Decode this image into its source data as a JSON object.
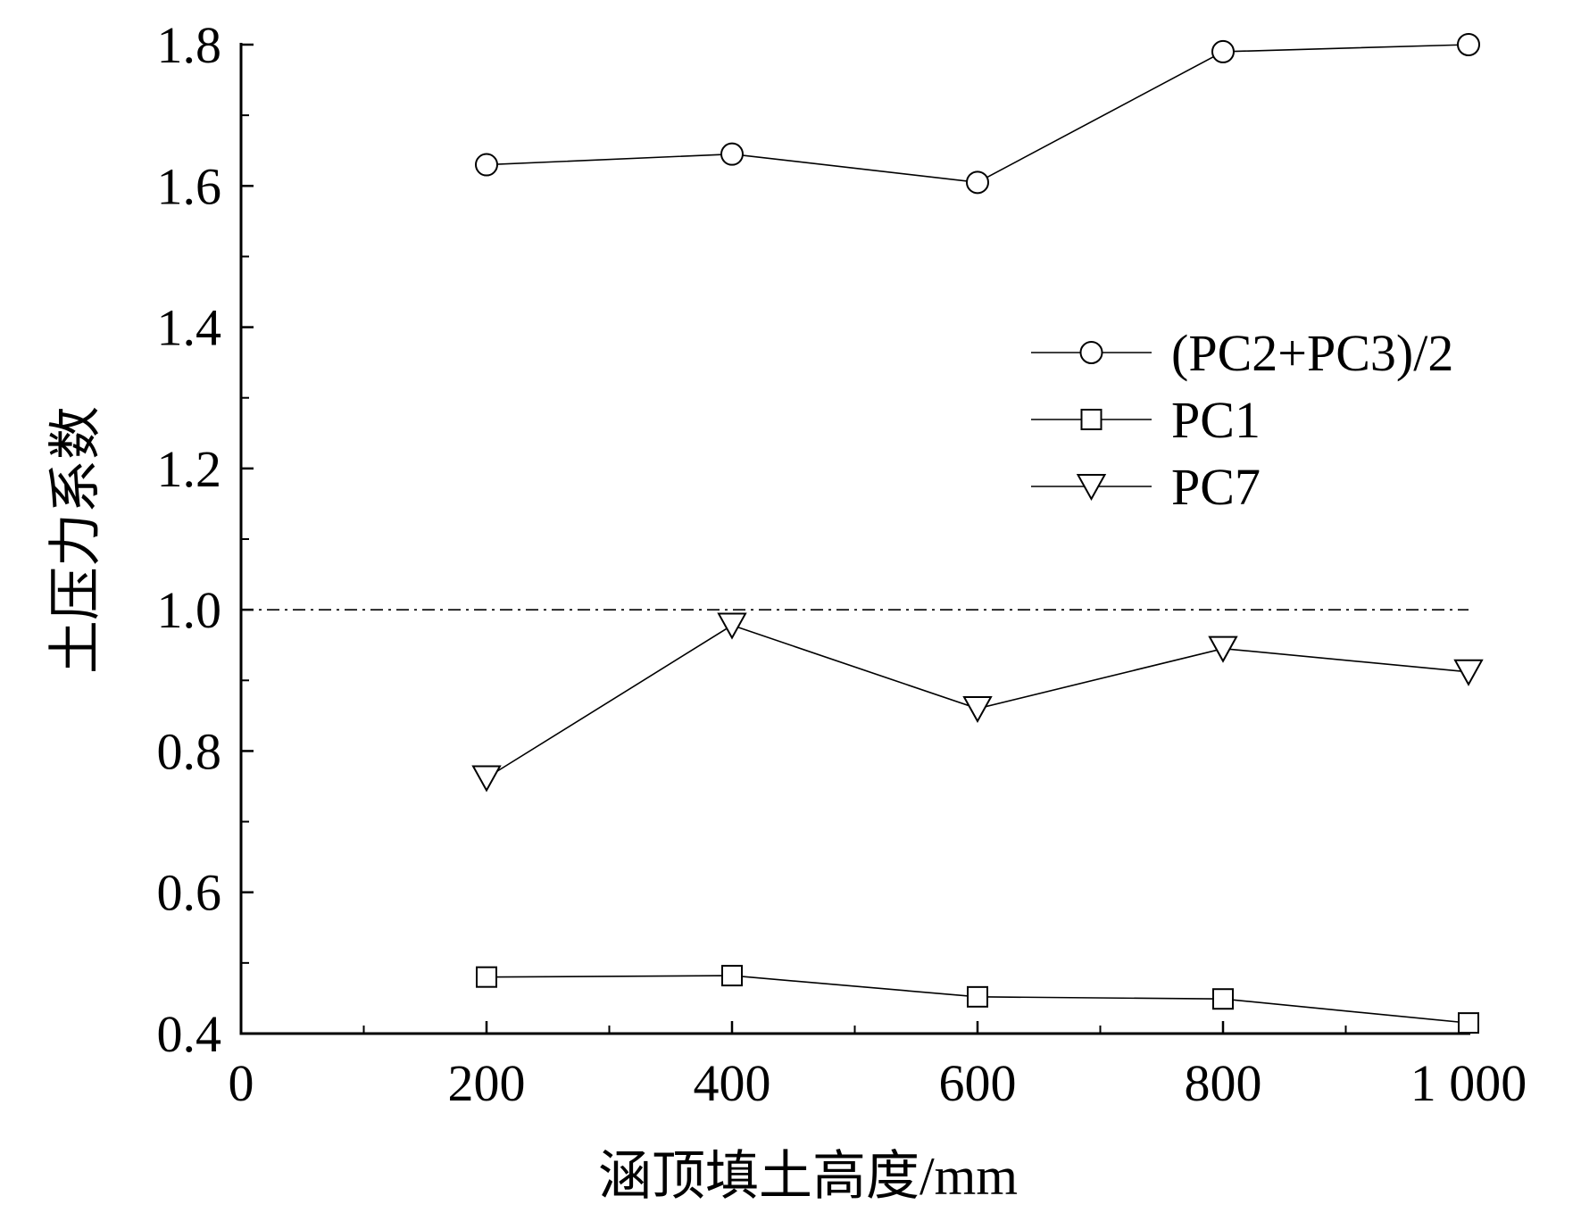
{
  "chart_data": {
    "type": "line",
    "xlabel": "涵顶填土高度/mm",
    "ylabel": "土压力系数",
    "xlim": [
      0,
      1000
    ],
    "ylim": [
      0.4,
      1.8
    ],
    "x_ticks": [
      0,
      200,
      400,
      600,
      800,
      1000
    ],
    "x_tick_labels": [
      "0",
      "200",
      "400",
      "600",
      "800",
      "1 000"
    ],
    "x_minor_ticks": [
      100,
      300,
      500,
      700,
      900
    ],
    "y_ticks": [
      0.4,
      0.6,
      0.8,
      1.0,
      1.2,
      1.4,
      1.6,
      1.8
    ],
    "y_tick_labels": [
      "0.4",
      "0.6",
      "0.8",
      "1.0",
      "1.2",
      "1.4",
      "1.6",
      "1.8"
    ],
    "y_minor_ticks": [
      0.5,
      0.7,
      0.9,
      1.1,
      1.3,
      1.5,
      1.7
    ],
    "x": [
      200,
      400,
      600,
      800,
      1000
    ],
    "series": [
      {
        "name": "(PC2+PC3)/2",
        "marker": "circle",
        "values": [
          1.63,
          1.645,
          1.605,
          1.79,
          1.8
        ]
      },
      {
        "name": "PC1",
        "marker": "square",
        "values": [
          0.48,
          0.482,
          0.452,
          0.449,
          0.415
        ]
      },
      {
        "name": "PC7",
        "marker": "triangle-down",
        "values": [
          0.762,
          0.978,
          0.86,
          0.945,
          0.912
        ]
      }
    ],
    "reference_line": {
      "y": 1.0,
      "x_range": [
        0,
        1000
      ],
      "style": "dash-dot"
    },
    "legend_position": "right-middle",
    "grid": false,
    "colors": {
      "line": "#000000",
      "marker_fill": "#ffffff",
      "background": "#ffffff"
    }
  }
}
